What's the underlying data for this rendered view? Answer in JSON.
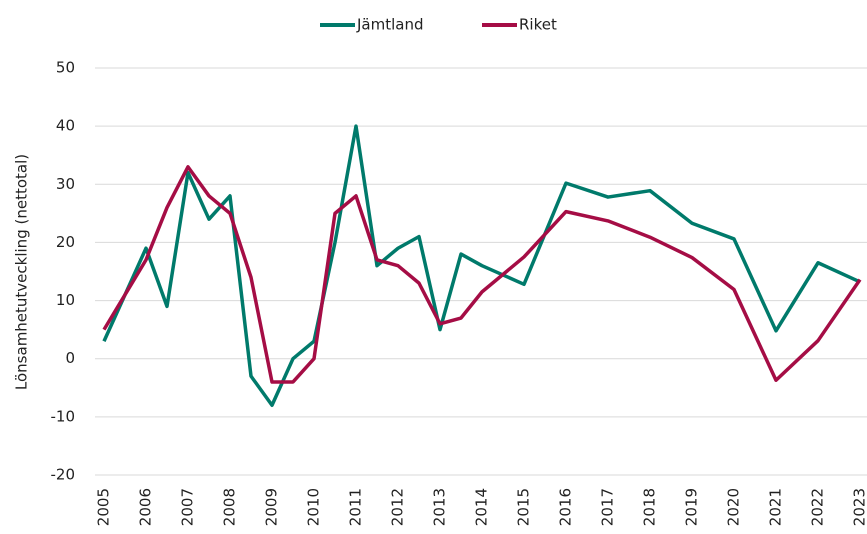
{
  "chart_data": {
    "type": "line",
    "y_label": "Lönsamhetutveckling (nettotal)",
    "x": [
      2005,
      2006,
      2006.5,
      2007,
      2007.5,
      2008,
      2008.5,
      2009,
      2009.5,
      2010,
      2010.5,
      2011,
      2011.5,
      2012,
      2012.5,
      2013,
      2013.5,
      2014,
      2015,
      2016,
      2017,
      2018,
      2019,
      2020,
      2021,
      2022,
      2023
    ],
    "series": [
      {
        "name": "Jämtland",
        "color": "#007a6b",
        "values": [
          3,
          19,
          9,
          32,
          24,
          28,
          -3,
          -8,
          0,
          3,
          20,
          40,
          16,
          19,
          21,
          5,
          18,
          16,
          12.8,
          30.2,
          27.8,
          28.9,
          23.3,
          20.6,
          4.8,
          16.5,
          13.2
        ]
      },
      {
        "name": "Riket",
        "color": "#a50d45",
        "values": [
          5,
          17,
          26,
          33,
          28,
          25,
          14,
          -4,
          -4,
          0,
          25,
          28,
          17,
          16,
          13,
          6,
          7,
          11.5,
          17.5,
          25.3,
          23.7,
          20.9,
          17.4,
          11.9,
          -3.7,
          3.1,
          13.6
        ]
      }
    ],
    "xlim": [
      2005,
      2023
    ],
    "xticks": [
      2005,
      2006,
      2007,
      2008,
      2009,
      2010,
      2011,
      2012,
      2013,
      2014,
      2015,
      2016,
      2017,
      2018,
      2019,
      2020,
      2021,
      2022,
      2023
    ],
    "ylim": [
      -20,
      50
    ],
    "yticks": [
      -20,
      -10,
      0,
      10,
      20,
      30,
      40,
      50
    ],
    "grid": true,
    "legend": "top"
  }
}
